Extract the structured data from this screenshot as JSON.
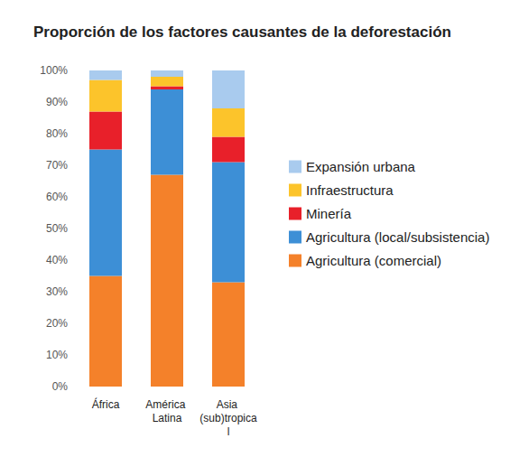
{
  "chart_data": {
    "type": "bar",
    "title": "Proporción de los factores causantes de la deforestación",
    "categories": [
      "África",
      "América Latina",
      "Asia (sub)tropical"
    ],
    "series": [
      {
        "name": "Agricultura (comercial)",
        "color": "#f4812a",
        "values": [
          35,
          67,
          33
        ]
      },
      {
        "name": "Agricultura (local/subsistencia)",
        "color": "#3d8fd6",
        "values": [
          40,
          27,
          38
        ]
      },
      {
        "name": "Minería",
        "color": "#e8202a",
        "values": [
          12,
          1,
          8
        ]
      },
      {
        "name": "Infraestructura",
        "color": "#fcc42b",
        "values": [
          10,
          3,
          9
        ]
      },
      {
        "name": "Expansión urbana",
        "color": "#a9cbee",
        "values": [
          3,
          2,
          12
        ]
      }
    ],
    "ylim": [
      0,
      100
    ],
    "yticks": [
      {
        "value": 0,
        "label": "0%"
      },
      {
        "value": 10,
        "label": "10%"
      },
      {
        "value": 20,
        "label": "20%"
      },
      {
        "value": 30,
        "label": "30%"
      },
      {
        "value": 40,
        "label": "40%"
      },
      {
        "value": 50,
        "label": "50%"
      },
      {
        "value": 60,
        "label": "60%"
      },
      {
        "value": 70,
        "label": "70%"
      },
      {
        "value": 80,
        "label": "80%"
      },
      {
        "value": 90,
        "label": "90%"
      },
      {
        "value": 100,
        "label": "100%"
      }
    ],
    "stacked": true,
    "grid": false,
    "legend": "right"
  }
}
